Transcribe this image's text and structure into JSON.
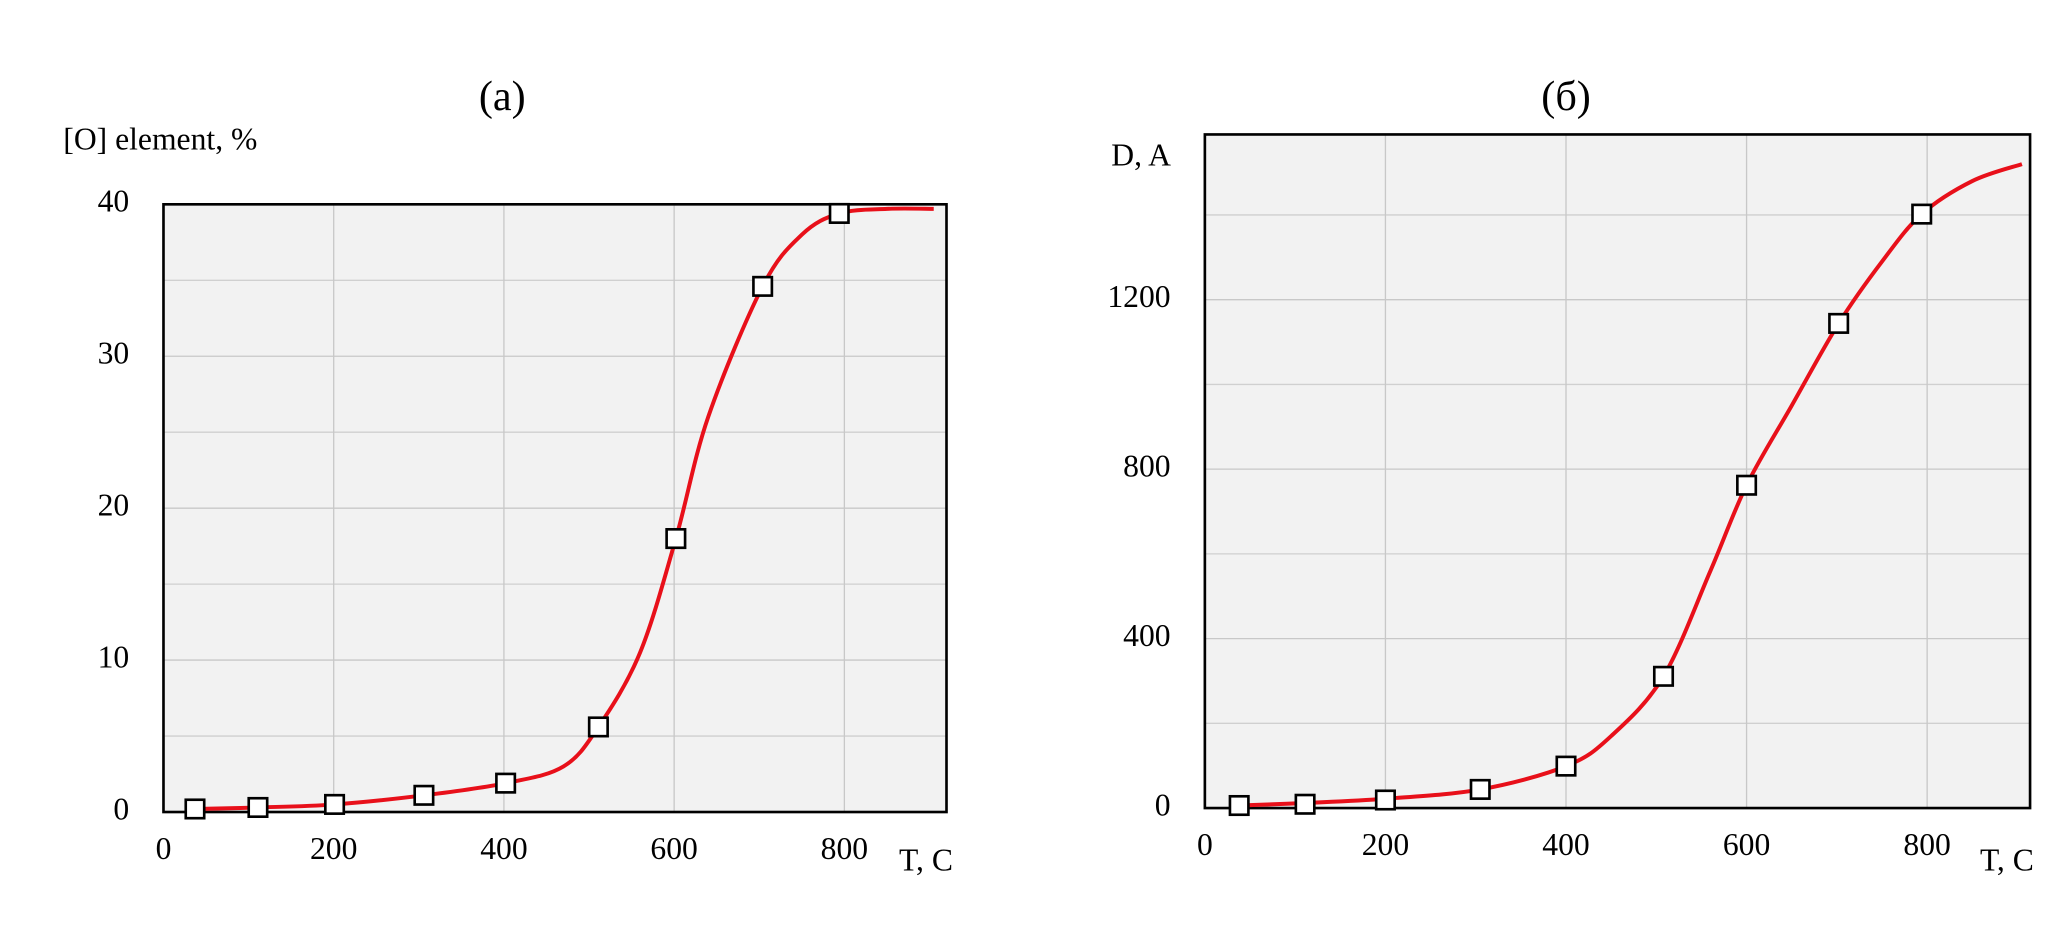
{
  "chart_data": [
    {
      "type": "line",
      "title": "(а)",
      "y_label": "[O] element, %",
      "x_label": "T, C",
      "xlim": [
        0,
        920
      ],
      "xticks": [
        0,
        200,
        400,
        600,
        800
      ],
      "ylim": [
        0,
        40
      ],
      "yticks": [
        0,
        10,
        20,
        30,
        40
      ],
      "y_minor_ticks": [
        5,
        15,
        25,
        35
      ],
      "grid": true,
      "background": "#f2f2f2",
      "series": [
        {
          "color": "#e8101a",
          "line": true,
          "smooth": true,
          "marker": "none",
          "x": [
            37,
            111,
            201,
            306,
            402,
            470,
            511,
            560,
            602,
            640,
            704,
            750,
            794,
            850,
            905
          ],
          "values": [
            0.2,
            0.3,
            0.5,
            1.1,
            1.9,
            3,
            5.6,
            10.5,
            18,
            26,
            34.6,
            38,
            39.4,
            39.7,
            39.7
          ]
        },
        {
          "color": "#000000",
          "line": false,
          "marker": "square",
          "x": [
            37,
            111,
            201,
            306,
            402,
            511,
            602,
            704,
            794
          ],
          "values": [
            0.2,
            0.3,
            0.5,
            1.1,
            1.9,
            5.6,
            18,
            34.6,
            39.4
          ]
        }
      ]
    },
    {
      "type": "line",
      "title": "(б)",
      "y_label": "D, A",
      "x_label": "T, C",
      "xlim": [
        0,
        914
      ],
      "xticks": [
        0,
        200,
        400,
        600,
        800
      ],
      "ylim": [
        0,
        1590
      ],
      "yticks": [
        0,
        400,
        800,
        1200
      ],
      "y_minor_ticks": [
        200,
        600,
        1000,
        1400
      ],
      "grid": true,
      "background": "#f2f2f2",
      "series": [
        {
          "color": "#e8101a",
          "line": true,
          "smooth": true,
          "marker": "none",
          "x": [
            38,
            111,
            200,
            305,
            400,
            450,
            508,
            560,
            600,
            650,
            702,
            750,
            794,
            850,
            905
          ],
          "values": [
            6,
            12,
            22,
            44,
            99,
            170,
            311,
            560,
            762,
            950,
            1144,
            1290,
            1402,
            1480,
            1520
          ]
        },
        {
          "color": "#000000",
          "line": false,
          "marker": "square",
          "x": [
            38,
            111,
            200,
            305,
            400,
            508,
            600,
            702,
            794
          ],
          "values": [
            6,
            9,
            19,
            44,
            99,
            311,
            762,
            1144,
            1402
          ]
        }
      ]
    }
  ]
}
